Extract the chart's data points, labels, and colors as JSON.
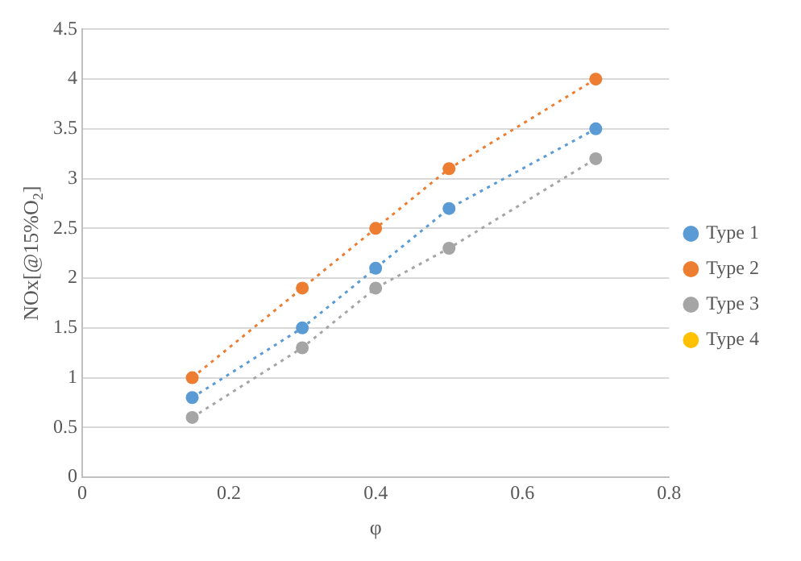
{
  "chart_data": {
    "type": "line",
    "xlabel": "φ",
    "ylabel": "NOx[@15%O$_{2}$]",
    "x": [
      0.15,
      0.3,
      0.4,
      0.5,
      0.7
    ],
    "series": [
      {
        "name": "Type 1",
        "color": "#5b9bd5",
        "values": [
          0.8,
          1.5,
          2.1,
          2.7,
          3.5
        ]
      },
      {
        "name": "Type 2",
        "color": "#ed7d31",
        "values": [
          1.0,
          1.9,
          2.5,
          3.1,
          4.0
        ]
      },
      {
        "name": "Type 3",
        "color": "#a5a5a5",
        "values": [
          0.6,
          1.3,
          1.9,
          2.3,
          3.2
        ]
      },
      {
        "name": "Type 4",
        "color": "#ffc000",
        "values": [
          null,
          null,
          null,
          null,
          null
        ]
      }
    ],
    "xlim": [
      0,
      0.8
    ],
    "xticks": [
      0,
      0.2,
      0.4,
      0.6,
      0.8
    ],
    "ylim": [
      0,
      4.5
    ],
    "yticks": [
      0,
      0.5,
      1,
      1.5,
      2,
      2.5,
      3,
      3.5,
      4,
      4.5
    ],
    "grid": "y",
    "legend": "right",
    "marker": "circle",
    "line_style": "dotted"
  }
}
